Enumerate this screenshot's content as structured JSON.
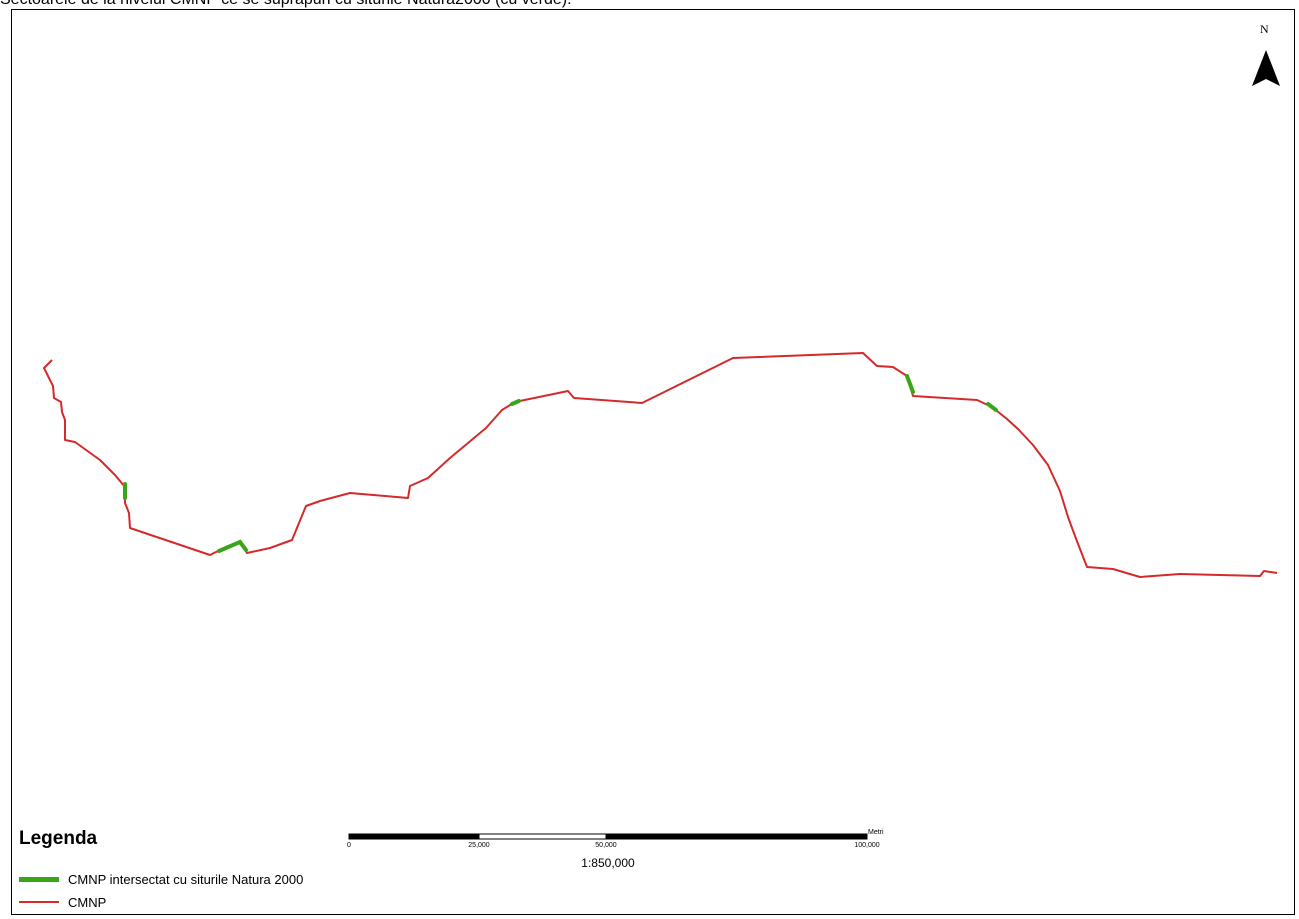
{
  "caption": "Sectoarele de la nivelul CMNP ce se suprapun cu siturile Natura2000 (cu verde).",
  "north_arrow": {
    "letter": "N"
  },
  "legend": {
    "title": "Legenda",
    "items": [
      {
        "label": "CMNP intersectat cu siturile Natura 2000",
        "color": "#3aa51a"
      },
      {
        "label": "CMNP",
        "color": "#d42a2a"
      }
    ]
  },
  "scale_bar": {
    "ticks": [
      "0",
      "25,000",
      "50,000",
      "100,000"
    ],
    "unit": "Metri",
    "ratio": "1:850,000"
  },
  "colors": {
    "route": "#d42a2a",
    "natura": "#3aa51a",
    "frame": "#000000"
  }
}
